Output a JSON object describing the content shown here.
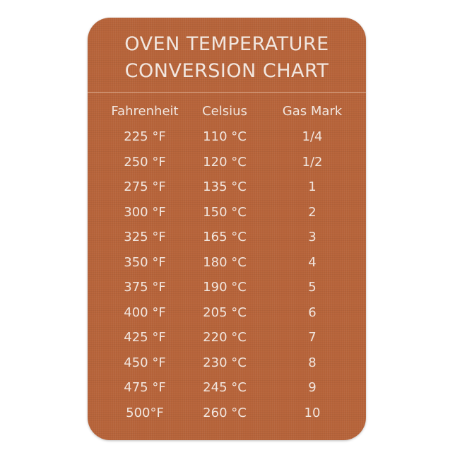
{
  "title_lines": [
    "OVEN TEMPERATURE",
    "CONVERSION CHART"
  ],
  "colors": {
    "background": "#b7643a",
    "text": "#f1e6df"
  },
  "table": {
    "headers": [
      "Fahrenheit",
      "Celsius",
      "Gas Mark"
    ],
    "rows": [
      [
        "225 °F",
        "110 °C",
        "1/4"
      ],
      [
        "250 °F",
        "120 °C",
        "1/2"
      ],
      [
        "275 °F",
        "135 °C",
        "1"
      ],
      [
        "300 °F",
        "150 °C",
        "2"
      ],
      [
        "325 °F",
        "165 °C",
        "3"
      ],
      [
        "350 °F",
        "180 °C",
        "4"
      ],
      [
        "375 °F",
        "190 °C",
        "5"
      ],
      [
        "400 °F",
        "205 °C",
        "6"
      ],
      [
        "425 °F",
        "220 °C",
        "7"
      ],
      [
        "450 °F",
        "230 °C",
        "8"
      ],
      [
        "475 °F",
        "245 °C",
        "9"
      ],
      [
        "500°F",
        "260 °C",
        "10"
      ]
    ]
  }
}
